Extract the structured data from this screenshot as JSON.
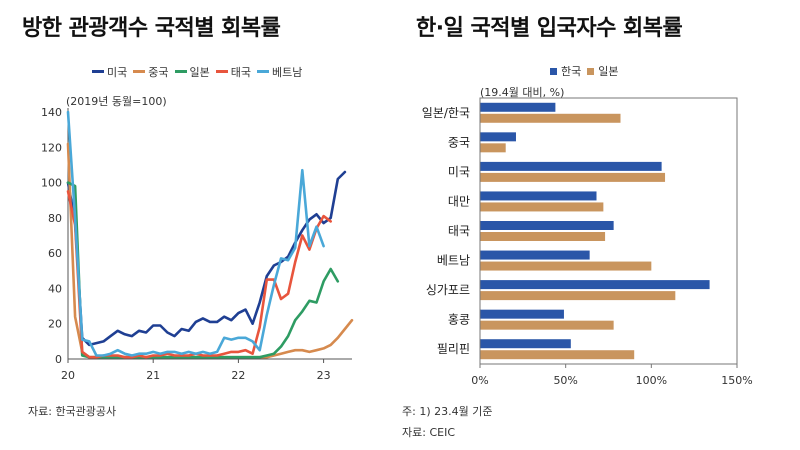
{
  "chart_data": [
    {
      "type": "line",
      "title": "방한 관광객수 국적별 회복률",
      "unit_label": "(2019년 동월=100)",
      "source": "자료: 한국관광공사",
      "x_tick_labels": [
        "20",
        "21",
        "22",
        "23"
      ],
      "xlim": [
        0,
        40
      ],
      "ylim": [
        0,
        140
      ],
      "y_ticks": [
        0,
        20,
        40,
        60,
        80,
        100,
        120,
        140
      ],
      "legend_position": "top",
      "x": [
        0,
        1,
        2,
        3,
        4,
        5,
        6,
        7,
        8,
        9,
        10,
        11,
        12,
        13,
        14,
        15,
        16,
        17,
        18,
        19,
        20,
        21,
        22,
        23,
        24,
        25,
        26,
        27,
        28,
        29,
        30,
        31,
        32,
        33,
        34,
        35,
        36,
        37,
        38,
        39,
        40
      ],
      "series": [
        {
          "name": "미국",
          "color": "#1f3f93",
          "values": [
            100,
            78,
            12,
            8,
            9,
            10,
            13,
            16,
            14,
            13,
            16,
            15,
            19,
            19,
            15,
            13,
            17,
            16,
            21,
            23,
            21,
            21,
            24,
            22,
            26,
            28,
            20,
            32,
            47,
            53,
            55,
            58,
            66,
            73,
            79,
            82,
            77,
            80,
            102,
            106,
            null
          ]
        },
        {
          "name": "중국",
          "color": "#d68a4e",
          "values": [
            122,
            24,
            4,
            1,
            1,
            1,
            1,
            1,
            1,
            1,
            1,
            1,
            1,
            1,
            1,
            1,
            1,
            1,
            1,
            1,
            1,
            1,
            1,
            1,
            1,
            1,
            1,
            1,
            1,
            2,
            3,
            4,
            5,
            5,
            4,
            5,
            6,
            8,
            12,
            17,
            22
          ]
        },
        {
          "name": "일본",
          "color": "#2e9c63",
          "values": [
            100,
            98,
            2,
            1,
            1,
            1,
            1,
            1,
            1,
            1,
            1,
            1,
            1,
            1,
            1,
            1,
            1,
            1,
            1,
            1,
            1,
            1,
            1,
            1,
            1,
            1,
            1,
            1,
            2,
            3,
            7,
            13,
            22,
            27,
            33,
            32,
            44,
            51,
            44,
            null,
            null
          ]
        },
        {
          "name": "태국",
          "color": "#e8553d",
          "values": [
            95,
            76,
            4,
            1,
            1,
            2,
            2,
            2,
            1,
            1,
            2,
            1,
            2,
            2,
            3,
            2,
            2,
            2,
            3,
            2,
            2,
            2,
            3,
            4,
            4,
            5,
            3,
            18,
            45,
            45,
            34,
            37,
            55,
            70,
            62,
            74,
            81,
            78,
            null,
            null,
            null
          ]
        },
        {
          "name": "베트남",
          "color": "#4aa8d8",
          "values": [
            140,
            80,
            11,
            10,
            2,
            2,
            3,
            5,
            3,
            2,
            3,
            3,
            4,
            3,
            4,
            4,
            3,
            4,
            3,
            4,
            3,
            4,
            12,
            11,
            12,
            12,
            10,
            5,
            25,
            42,
            57,
            56,
            63,
            107,
            64,
            75,
            64,
            null,
            null,
            null,
            null
          ]
        }
      ]
    },
    {
      "type": "bar",
      "orientation": "horizontal",
      "title": "한·일 국적별 입국자수 회복률",
      "unit_label": "(19.4월 대비, %)",
      "footnote": "주: 1) 23.4월 기준",
      "source": "자료: CEIC",
      "categories": [
        "일본/한국",
        "중국",
        "미국",
        "대만",
        "태국",
        "베트남",
        "싱가포르",
        "홍콩",
        "필리핀"
      ],
      "xlim": [
        0,
        150
      ],
      "x_ticks": [
        0,
        50,
        100,
        150
      ],
      "x_tick_labels": [
        "0%",
        "50%",
        "100%",
        "150%"
      ],
      "legend_position": "top",
      "series": [
        {
          "name": "한국",
          "color": "#2a56a8",
          "values": [
            44,
            21,
            106,
            68,
            78,
            64,
            134,
            49,
            53
          ]
        },
        {
          "name": "일본",
          "color": "#c9955e",
          "values": [
            82,
            15,
            108,
            72,
            73,
            100,
            114,
            78,
            90
          ]
        }
      ]
    }
  ]
}
